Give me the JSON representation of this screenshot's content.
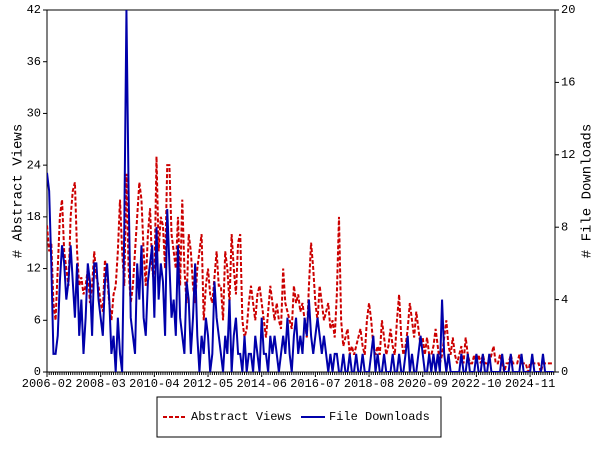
{
  "chart_data": {
    "type": "line",
    "ylabel": "# Abstract Views",
    "y2label": "# File Downloads",
    "x": [
      "2006-02",
      null,
      null,
      null,
      null,
      null,
      null,
      null,
      null,
      null,
      null,
      null,
      null,
      null,
      null,
      null,
      null,
      null,
      null,
      null,
      null,
      null,
      null,
      null,
      null,
      "2008-03",
      null,
      null,
      null,
      null,
      null,
      null,
      null,
      null,
      null,
      null,
      null,
      null,
      null,
      null,
      null,
      null,
      null,
      null,
      null,
      null,
      null,
      null,
      null,
      null,
      "2010-04",
      null,
      null,
      null,
      null,
      null,
      null,
      null,
      null,
      null,
      null,
      null,
      null,
      null,
      null,
      null,
      null,
      null,
      null,
      null,
      null,
      null,
      null,
      null,
      null,
      "2012-05",
      null,
      null,
      null,
      null,
      null,
      null,
      null,
      null,
      null,
      null,
      null,
      null,
      null,
      null,
      null,
      null,
      null,
      null,
      null,
      null,
      null,
      null,
      null,
      null,
      "2014-06",
      null,
      null,
      null,
      null,
      null,
      null,
      null,
      null,
      null,
      null,
      null,
      null,
      null,
      null,
      null,
      null,
      null,
      null,
      null,
      null,
      null,
      null,
      null,
      null,
      "2016-07",
      null,
      null,
      null,
      null,
      null,
      null,
      null,
      null,
      null,
      null,
      null,
      null,
      null,
      null,
      null,
      null,
      null,
      null,
      null,
      null,
      null,
      null,
      null,
      null,
      "2018-08",
      null,
      null,
      null,
      null,
      null,
      null,
      null,
      null,
      null,
      null,
      null,
      null,
      null,
      null,
      null,
      null,
      null,
      null,
      null,
      null,
      null,
      null,
      null,
      null,
      "2020-09",
      null,
      null,
      null,
      null,
      null,
      null,
      null,
      null,
      null,
      null,
      null,
      null,
      null,
      null,
      null,
      null,
      null,
      null,
      null,
      null,
      null,
      null,
      null,
      null,
      "2022-10",
      null,
      null,
      null,
      null,
      null,
      null,
      null,
      null,
      null,
      null,
      null,
      null,
      null,
      null,
      null,
      null,
      null,
      null,
      null,
      null,
      null,
      null,
      null,
      null,
      "2024-11",
      null,
      null,
      null,
      null,
      null,
      null,
      null,
      null,
      null,
      null,
      null
    ],
    "ylim": [
      0,
      42
    ],
    "yticks": [
      0,
      6,
      12,
      18,
      24,
      30,
      36,
      42
    ],
    "y2lim": [
      0,
      20
    ],
    "y2ticks": [
      0,
      4,
      8,
      12,
      16,
      20
    ],
    "legend": "bottom",
    "series": [
      {
        "name": "Abstract Views",
        "color": "#cc0000",
        "dash": "dashed",
        "axis": "y",
        "values": [
          17,
          14,
          15,
          8,
          6,
          12,
          18,
          20,
          14,
          12,
          10,
          18,
          21,
          22,
          14,
          10,
          11,
          9,
          10,
          12,
          8,
          10,
          14,
          11,
          10,
          8,
          7,
          13,
          11,
          8,
          6,
          9,
          10,
          14,
          20,
          14,
          10,
          23,
          12,
          8,
          10,
          14,
          18,
          22,
          20,
          14,
          10,
          16,
          19,
          12,
          10,
          25,
          14,
          18,
          17,
          12,
          24,
          24,
          16,
          14,
          12,
          18,
          10,
          20,
          12,
          8,
          16,
          14,
          10,
          8,
          12,
          14,
          16,
          6,
          10,
          12,
          9,
          8,
          11,
          14,
          10,
          10,
          6,
          14,
          12,
          8,
          16,
          12,
          9,
          15,
          16,
          6,
          4,
          5,
          8,
          10,
          8,
          6,
          9,
          10,
          8,
          6,
          4,
          7,
          10,
          8,
          6,
          8,
          6,
          5,
          12,
          8,
          7,
          6,
          5,
          10,
          8,
          9,
          7,
          8,
          6,
          4,
          10,
          15,
          12,
          8,
          6,
          10,
          8,
          6,
          7,
          8,
          5,
          6,
          4,
          9,
          18,
          6,
          3,
          4,
          5,
          2,
          3,
          2,
          3,
          4,
          5,
          3,
          2,
          6,
          8,
          6,
          3,
          2,
          3,
          2,
          6,
          4,
          2,
          3,
          5,
          3,
          2,
          6,
          9,
          4,
          2,
          3,
          5,
          8,
          6,
          4,
          7,
          5,
          3,
          4,
          2,
          4,
          2,
          2,
          3,
          5,
          3,
          1,
          2,
          4,
          6,
          3,
          2,
          4,
          2,
          1,
          2,
          3,
          1,
          4,
          2,
          1,
          1,
          2,
          1,
          2,
          1,
          2,
          1,
          1,
          1,
          2,
          3,
          1,
          1,
          2,
          1,
          0,
          1,
          1,
          2,
          1,
          1,
          1,
          2,
          1,
          1,
          1,
          0,
          1,
          1,
          1,
          1,
          1,
          0,
          1,
          1,
          1,
          1,
          1,
          1
        ]
      },
      {
        "name": "File Downloads",
        "color": "#0000aa",
        "dash": "solid",
        "axis": "y2",
        "values": [
          11,
          10,
          6,
          1,
          1,
          2,
          5,
          7,
          6,
          4,
          5,
          7,
          5,
          3,
          6,
          2,
          4,
          1,
          3,
          6,
          5,
          2,
          6,
          6,
          4,
          3,
          2,
          5,
          6,
          4,
          1,
          2,
          0,
          3,
          1,
          0,
          8,
          20,
          10,
          3,
          2,
          1,
          6,
          4,
          7,
          3,
          2,
          5,
          6,
          7,
          3,
          8,
          4,
          6,
          5,
          2,
          9,
          6,
          3,
          4,
          2,
          7,
          3,
          2,
          1,
          5,
          4,
          1,
          3,
          6,
          2,
          0,
          2,
          1,
          3,
          2,
          0,
          1,
          5,
          3,
          2,
          1,
          0,
          2,
          1,
          4,
          0,
          2,
          3,
          1,
          1,
          0,
          2,
          0,
          1,
          1,
          0,
          2,
          1,
          0,
          3,
          1,
          1,
          0,
          2,
          1,
          2,
          1,
          0,
          1,
          2,
          1,
          3,
          1,
          0,
          2,
          3,
          1,
          2,
          1,
          3,
          2,
          4,
          2,
          1,
          2,
          3,
          2,
          1,
          2,
          1,
          0,
          1,
          0,
          1,
          1,
          0,
          0,
          1,
          0,
          0,
          1,
          0,
          0,
          1,
          0,
          0,
          1,
          0,
          0,
          0,
          1,
          2,
          0,
          1,
          0,
          0,
          1,
          0,
          0,
          0,
          1,
          0,
          0,
          1,
          0,
          0,
          1,
          2,
          0,
          1,
          0,
          0,
          1,
          2,
          1,
          0,
          0,
          1,
          0,
          1,
          0,
          1,
          0,
          4,
          1,
          0,
          1,
          0,
          0,
          0,
          0,
          0,
          1,
          0,
          0,
          1,
          0,
          0,
          0,
          1,
          0,
          0,
          1,
          0,
          0,
          1,
          0,
          0,
          0,
          0,
          0,
          1,
          0,
          0,
          0,
          1,
          0,
          0,
          0,
          0,
          1,
          0,
          0,
          0,
          0,
          1,
          0,
          0,
          0,
          0,
          1,
          0,
          0,
          0,
          0,
          0
        ]
      }
    ]
  }
}
